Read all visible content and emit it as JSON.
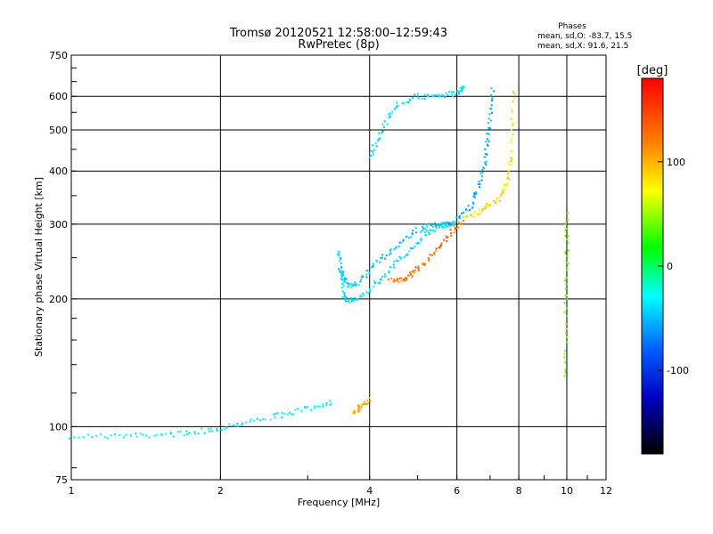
{
  "chart_data": {
    "type": "scatter",
    "title": "Tromsø 20120521 12:58:00–12:59:43",
    "subtitle": "RwPretec (8p)",
    "xlabel": "Frequency [MHz]",
    "ylabel": "Stationary phase Virtual Height [km]",
    "x_scale": "log",
    "y_scale": "log",
    "xlim": [
      1,
      12
    ],
    "ylim": [
      75,
      750
    ],
    "x_ticks": [
      1,
      2,
      4,
      6,
      8,
      10,
      12
    ],
    "y_ticks": [
      75,
      100,
      200,
      300,
      400,
      500,
      600,
      750
    ],
    "grid": true,
    "stats": {
      "heading": "Phases",
      "line1": "mean, sd,O:  -83.7, 15.5",
      "line2": "mean, sd,X:  91.6, 21.5"
    },
    "colorbar": {
      "label": "[deg]",
      "range": [
        -180,
        180
      ],
      "ticks": [
        100,
        0,
        -100
      ]
    },
    "traces": [
      {
        "x": [
          1.0,
          1.3,
          1.6,
          1.9,
          2.2,
          2.6,
          3.0,
          3.4
        ],
        "y": [
          95,
          95,
          96,
          98,
          102,
          106,
          110,
          115
        ],
        "phase": -95
      },
      {
        "x": [
          3.45,
          3.5,
          3.55,
          3.7,
          4.0,
          4.4,
          4.8,
          5.2,
          5.6,
          5.9
        ],
        "y": [
          260,
          230,
          200,
          198,
          210,
          235,
          260,
          285,
          298,
          300
        ],
        "phase": -100
      },
      {
        "x": [
          3.5,
          3.6,
          3.8,
          4.1,
          4.5,
          5.0,
          5.5,
          5.9
        ],
        "y": [
          235,
          215,
          218,
          240,
          265,
          290,
          300,
          300
        ],
        "phase": -110
      },
      {
        "x": [
          4.0,
          4.2,
          4.5,
          5.0,
          5.5,
          6.0,
          6.2
        ],
        "y": [
          430,
          490,
          570,
          600,
          600,
          610,
          640
        ],
        "phase": -100
      },
      {
        "x": [
          4.4,
          4.7,
          5.0,
          5.4,
          5.8,
          6.2
        ],
        "y": [
          220,
          222,
          235,
          255,
          285,
          305
        ],
        "phase": 140
      },
      {
        "x": [
          6.0,
          6.4,
          6.7,
          6.9,
          7.0,
          7.1
        ],
        "y": [
          305,
          330,
          380,
          450,
          540,
          640
        ],
        "phase": -120
      },
      {
        "x": [
          6.2,
          6.8,
          7.3,
          7.6,
          7.75,
          7.8
        ],
        "y": [
          310,
          325,
          345,
          380,
          450,
          640
        ],
        "phase": 100
      },
      {
        "x": [
          3.7,
          3.85,
          4.0
        ],
        "y": [
          108,
          112,
          116
        ],
        "phase": 120
      },
      {
        "x": [
          9.9,
          9.95,
          10.0,
          10.0
        ],
        "y": [
          130,
          190,
          250,
          320
        ],
        "phase": 40
      }
    ]
  }
}
